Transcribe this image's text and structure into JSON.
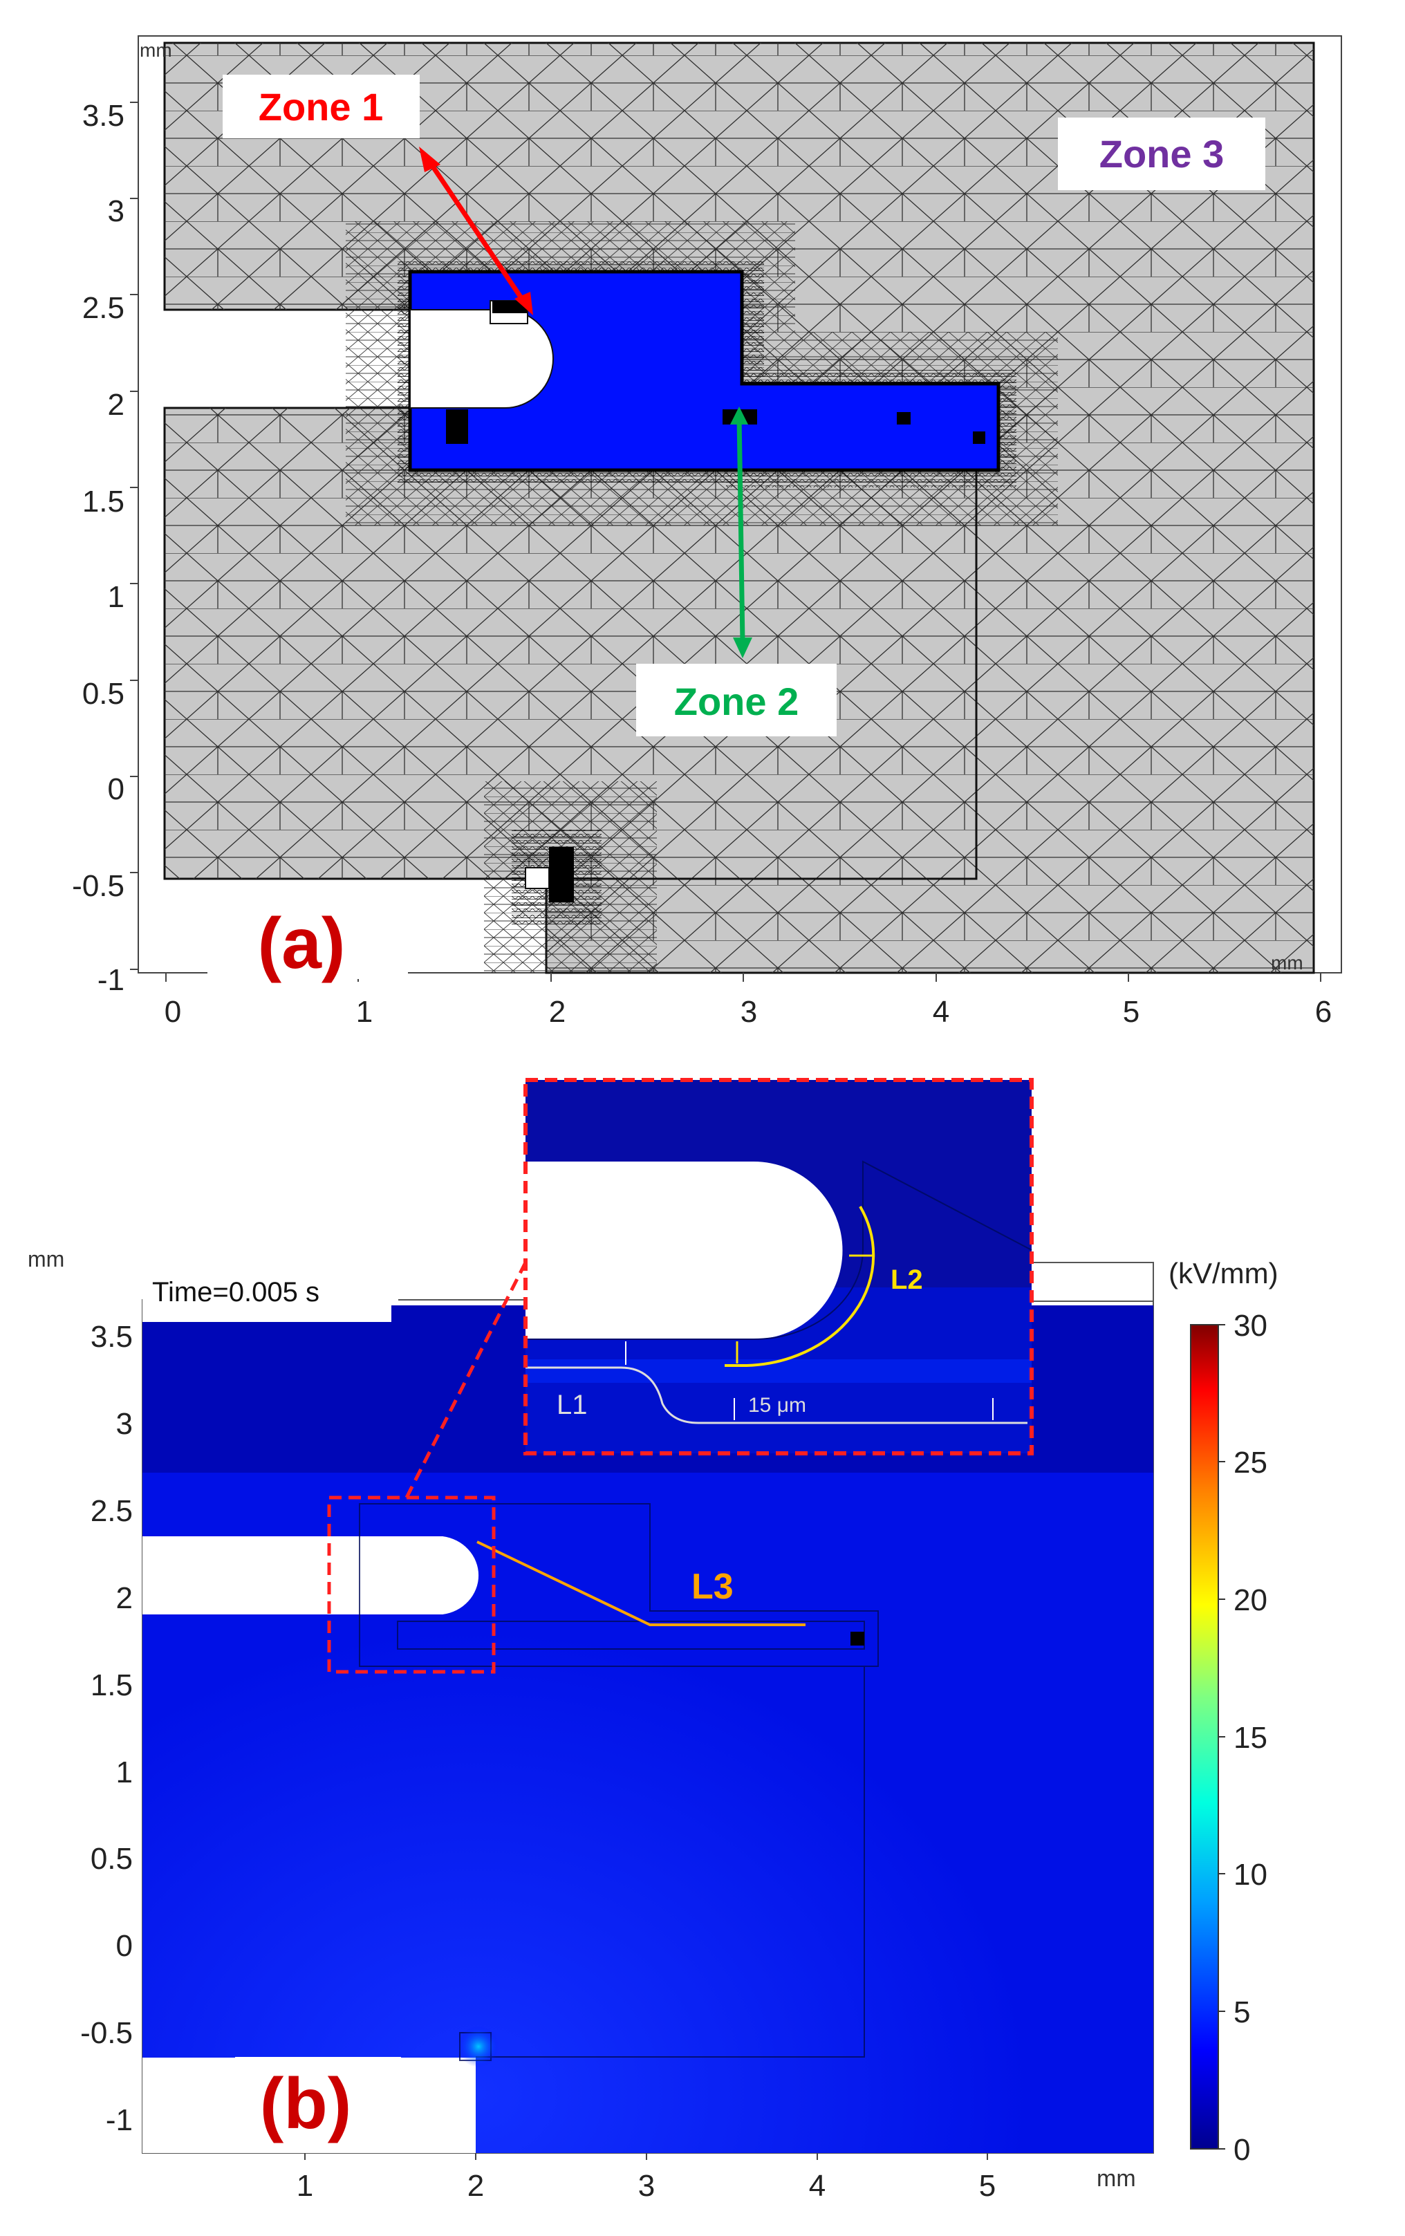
{
  "panel_a": {
    "label": "(a)",
    "unit_top": "mm",
    "unit_right": "mm",
    "x_ticks": [
      "0",
      "1",
      "2",
      "3",
      "4",
      "5",
      "6"
    ],
    "y_ticks": [
      "3.5",
      "3",
      "2.5",
      "2",
      "1.5",
      "1",
      "0.5",
      "0",
      "-0.5",
      "-1"
    ],
    "annotations": {
      "zone1": "Zone 1",
      "zone2": "Zone 2",
      "zone3": "Zone 3"
    },
    "colors": {
      "mesh_bg": "#c8c8c8",
      "conductor": "#0010ff",
      "zone1": "#ff0000",
      "zone2": "#00b050",
      "zone3": "#7030a0",
      "label": "#cc0000"
    }
  },
  "panel_b": {
    "label": "(b)",
    "time_label": "Time=0.005 s",
    "unit_top": "mm",
    "unit_bottom": "mm",
    "x_ticks": [
      "1",
      "2",
      "3",
      "4",
      "5"
    ],
    "y_ticks": [
      "3.5",
      "3",
      "2.5",
      "2",
      "1.5",
      "1",
      "0.5",
      "0",
      "-0.5",
      "-1"
    ],
    "colorbar": {
      "unit": "(kV/mm)",
      "ticks": [
        "30",
        "25",
        "20",
        "15",
        "10",
        "5",
        "0"
      ],
      "range": [
        0,
        30
      ]
    },
    "lines": {
      "l1": "L1",
      "l2": "L2",
      "l3": "L3"
    },
    "inset_dimension": "15 μm",
    "colors": {
      "field_low": "#00008f",
      "field_mid": "#0a1dff",
      "line_l2": "#ffe100",
      "line_l3": "#ffa500",
      "inset_border": "#ff1a1a"
    }
  }
}
